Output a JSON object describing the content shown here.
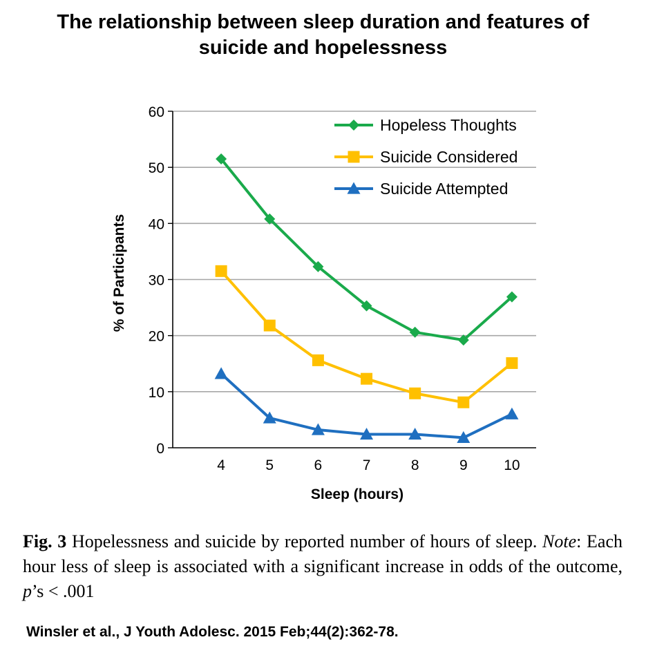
{
  "page_title": {
    "line1": "The relationship between sleep duration and features of",
    "line2": "suicide and hopelessness"
  },
  "chart_data": {
    "type": "line",
    "xlabel": "Sleep (hours)",
    "ylabel": "% of Participants",
    "x": [
      4,
      5,
      6,
      7,
      8,
      9,
      10
    ],
    "xlim": [
      3,
      10.5
    ],
    "ylim": [
      0,
      60
    ],
    "yticks": [
      0,
      10,
      20,
      30,
      40,
      50,
      60
    ],
    "grid": "horizontal",
    "legend_position": "top-right",
    "series": [
      {
        "name": "Hopeless Thoughts",
        "color": "#1aaa4b",
        "marker": "diamond",
        "values": [
          51.5,
          40.8,
          32.3,
          25.3,
          20.6,
          19.2,
          26.9
        ]
      },
      {
        "name": "Suicide Considered",
        "color": "#ffc000",
        "marker": "square",
        "values": [
          31.5,
          21.8,
          15.6,
          12.3,
          9.7,
          8.1,
          15.1
        ]
      },
      {
        "name": "Suicide Attempted",
        "color": "#1f6fc0",
        "marker": "triangle",
        "values": [
          13.2,
          5.3,
          3.2,
          2.4,
          2.4,
          1.8,
          6.0
        ]
      }
    ]
  },
  "caption": {
    "fig_label": "Fig. 3",
    "text_before_note": " Hopelessness and suicide by reported number of hours of sleep. ",
    "note_label": "Note",
    "text_after_note": ": Each hour less of sleep is associated with a significant increase in odds of the outcome, ",
    "p_symbol": "p",
    "text_end": "’s < .001"
  },
  "citation": "Winsler et al., J Youth Adolesc. 2015 Feb;44(2):362-78."
}
